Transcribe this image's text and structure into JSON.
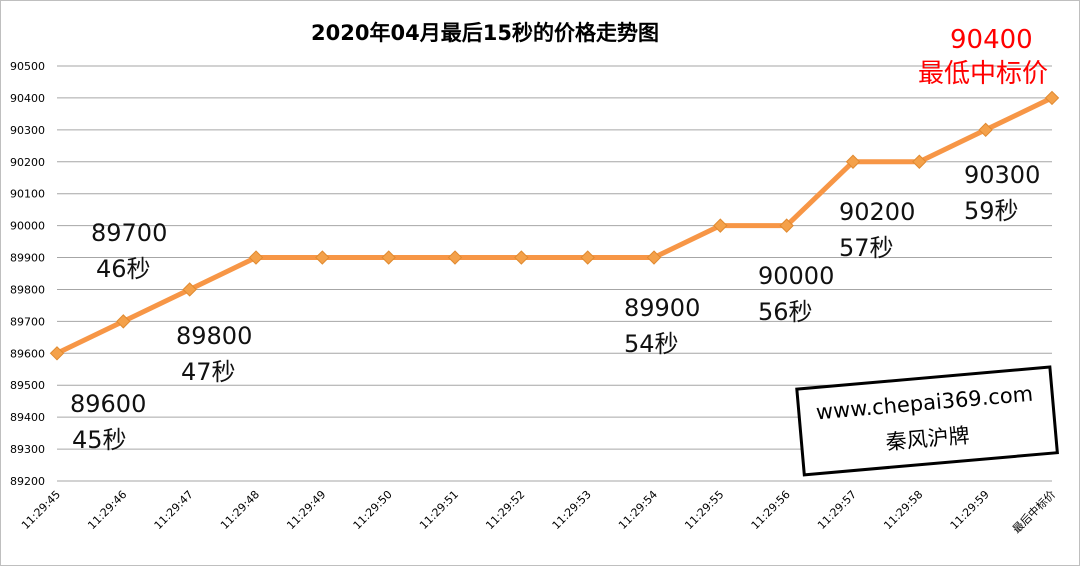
{
  "chart_data": {
    "type": "line",
    "title": "2020年04月最后15秒的价格走势图",
    "categories": [
      "11:29:45",
      "11:29:46",
      "11:29:47",
      "11:29:48",
      "11:29:49",
      "11:29:50",
      "11:29:51",
      "11:29:52",
      "11:29:53",
      "11:29:54",
      "11:29:55",
      "11:29:56",
      "11:29:57",
      "11:29:58",
      "11:29:59",
      "最后中标价"
    ],
    "series": [
      {
        "values": [
          89600,
          89700,
          89800,
          89900,
          89900,
          89900,
          89900,
          89900,
          89900,
          89900,
          90000,
          90000,
          90200,
          90200,
          90300,
          90400
        ]
      }
    ],
    "ylim": [
      89200,
      90500
    ],
    "yticks": [
      89200,
      89300,
      89400,
      89500,
      89600,
      89700,
      89800,
      89900,
      90000,
      90100,
      90200,
      90300,
      90400,
      90500
    ],
    "grid": true,
    "legend": "none",
    "line_color": "#F79646",
    "marker_color": "#F4A14A",
    "annotations": [
      {
        "index": 0,
        "value": "89600",
        "label": "45秒"
      },
      {
        "index": 1,
        "value": "89700",
        "label": "46秒"
      },
      {
        "index": 2,
        "value": "89800",
        "label": "47秒"
      },
      {
        "index": 9,
        "value": "89900",
        "label": "54秒"
      },
      {
        "index": 11,
        "value": "90000",
        "label": "56秒"
      },
      {
        "index": 12,
        "value": "90200",
        "label": "57秒"
      },
      {
        "index": 14,
        "value": "90300",
        "label": "59秒"
      },
      {
        "index": 15,
        "value": "90400",
        "label": "最低中标价",
        "color": "#FF0000"
      }
    ]
  },
  "watermark": {
    "url": "www.chepai369.com",
    "name": "秦风沪牌"
  }
}
